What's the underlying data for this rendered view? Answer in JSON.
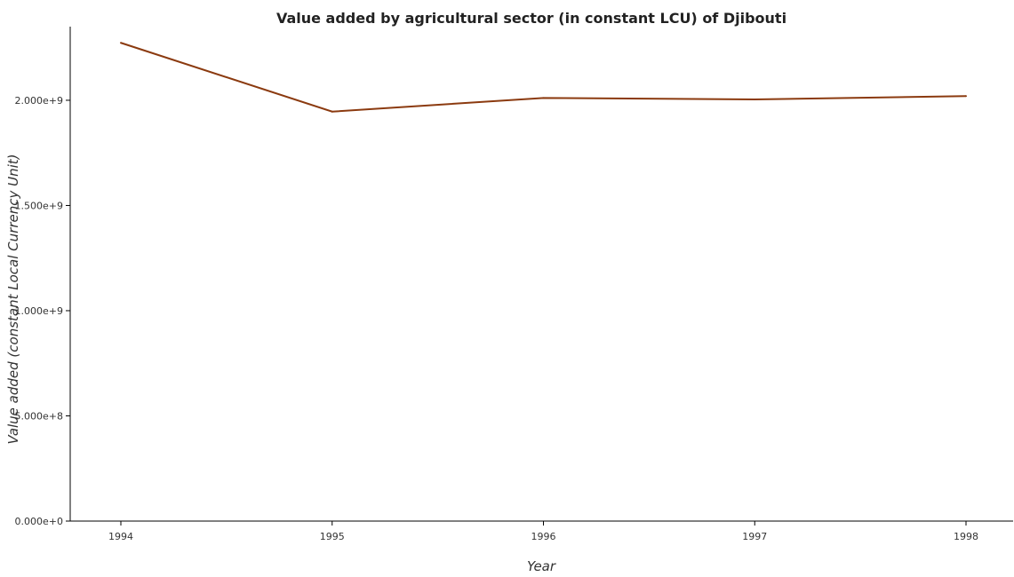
{
  "chart_data": {
    "type": "line",
    "title": "Value added by agricultural sector (in constant LCU) of Djibouti",
    "xlabel": "Year",
    "ylabel": "Value added (constant Local Currency Unit)",
    "categories": [
      "1994",
      "1995",
      "1996",
      "1997",
      "1998"
    ],
    "series": [
      {
        "values": [
          2273000000,
          1946000000,
          2011000000,
          2004000000,
          2020000000
        ]
      }
    ],
    "ylim": [
      0,
      2350000000
    ],
    "yticks": [
      0,
      500000000,
      1000000000,
      1500000000,
      2000000000
    ],
    "ytick_labels": [
      "0.000e+0",
      "5.000e+8",
      "1.000e+9",
      "1.500e+9",
      "2.000e+9"
    ],
    "grid": false,
    "line_color": "#8b3a0f"
  }
}
